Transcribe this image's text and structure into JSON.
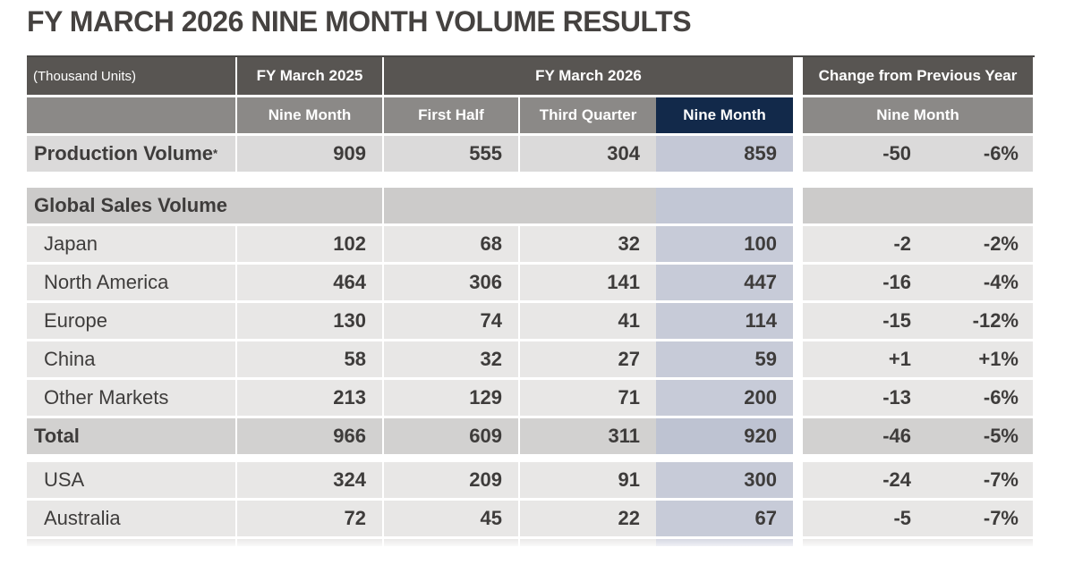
{
  "title": "FY MARCH 2026 NINE MONTH VOLUME RESULTS",
  "table": {
    "unit_label": "(Thousand Units)",
    "group_headers": {
      "fy_march_2025": "FY March 2025",
      "fy_march_2026": "FY March 2026",
      "change_from_previous_year": "Change from Previous Year"
    },
    "sub_headers": {
      "fy2025_nine_month": "Nine Month",
      "first_half": "First Half",
      "third_quarter": "Third Quarter",
      "nine_month": "Nine Month",
      "change_nine_month": "Nine Month"
    },
    "production_row": {
      "label": "Production Volume",
      "footnote_marker": "*",
      "fy2025_nine_month": "909",
      "first_half": "555",
      "third_quarter": "304",
      "nine_month": "859",
      "change_value": "-50",
      "change_percent": "-6%"
    },
    "sales_section_label": "Global Sales Volume",
    "sales_rows": [
      {
        "label": "Japan",
        "fy2025_nine_month": "102",
        "first_half": "68",
        "third_quarter": "32",
        "nine_month": "100",
        "change_value": "-2",
        "change_percent": "-2%"
      },
      {
        "label": "North America",
        "fy2025_nine_month": "464",
        "first_half": "306",
        "third_quarter": "141",
        "nine_month": "447",
        "change_value": "-16",
        "change_percent": "-4%"
      },
      {
        "label": "Europe",
        "fy2025_nine_month": "130",
        "first_half": "74",
        "third_quarter": "41",
        "nine_month": "114",
        "change_value": "-15",
        "change_percent": "-12%"
      },
      {
        "label": "China",
        "fy2025_nine_month": "58",
        "first_half": "32",
        "third_quarter": "27",
        "nine_month": "59",
        "change_value": "+1",
        "change_percent": "+1%"
      },
      {
        "label": "Other Markets",
        "fy2025_nine_month": "213",
        "first_half": "129",
        "third_quarter": "71",
        "nine_month": "200",
        "change_value": "-13",
        "change_percent": "-6%"
      }
    ],
    "total_row": {
      "label": "Total",
      "fy2025_nine_month": "966",
      "first_half": "609",
      "third_quarter": "311",
      "nine_month": "920",
      "change_value": "-46",
      "change_percent": "-5%"
    },
    "region_rows": [
      {
        "label": "USA",
        "fy2025_nine_month": "324",
        "first_half": "209",
        "third_quarter": "91",
        "nine_month": "300",
        "change_value": "-24",
        "change_percent": "-7%"
      },
      {
        "label": "Australia",
        "fy2025_nine_month": "72",
        "first_half": "45",
        "third_quarter": "22",
        "nine_month": "67",
        "change_value": "-5",
        "change_percent": "-7%"
      }
    ]
  },
  "colors": {
    "header_dark": "#585552",
    "header_gray": "#8b8987",
    "nine_month_navy": "#12294a",
    "highlight_column": "#c7cbd8",
    "row_light": "#e8e7e6",
    "section_gray": "#cccbca",
    "total_gray": "#d2d1d0",
    "title_text": "#454240"
  }
}
